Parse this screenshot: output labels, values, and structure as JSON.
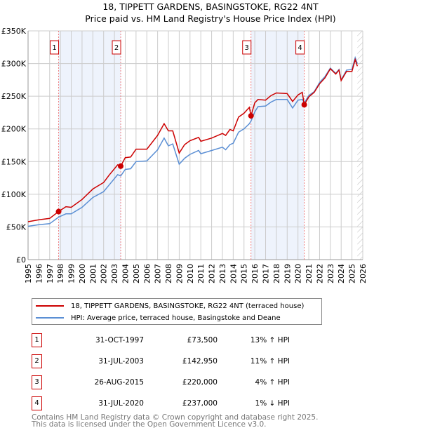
{
  "title_line1": "18, TIPPETT GARDENS, BASINGSTOKE, RG22 4NT",
  "title_line2": "Price paid vs. HM Land Registry's House Price Index (HPI)",
  "legend": {
    "property": "18, TIPPETT GARDENS, BASINGSTOKE, RG22 4NT (terraced house)",
    "hpi": "HPI: Average price, terraced house, Basingstoke and Deane"
  },
  "colors": {
    "property": "#cc0000",
    "hpi": "#5b8fd4",
    "shade": "#eef3fc",
    "grid": "#cccccc"
  },
  "transactions": [
    {
      "num": "1",
      "date": "31-OCT-1997",
      "price": "£73,500",
      "hpi": "13% ↑ HPI"
    },
    {
      "num": "2",
      "date": "31-JUL-2003",
      "price": "£142,950",
      "hpi": "11% ↑ HPI"
    },
    {
      "num": "3",
      "date": "26-AUG-2015",
      "price": "£220,000",
      "hpi": "4% ↑ HPI"
    },
    {
      "num": "4",
      "date": "31-JUL-2020",
      "price": "£237,000",
      "hpi": "1% ↓ HPI"
    }
  ],
  "footer": {
    "line1": "Contains HM Land Registry data © Crown copyright and database right 2025.",
    "line2": "This data is licensed under the Open Government Licence v3.0."
  },
  "chart_data": {
    "type": "line",
    "title": "18, TIPPETT GARDENS, BASINGSTOKE, RG22 4NT — Price paid vs. HM Land Registry's House Price Index (HPI)",
    "xlim": [
      1995,
      2026
    ],
    "ylim": [
      0,
      350000
    ],
    "x_ticks": [
      "1995",
      "1996",
      "1997",
      "1998",
      "1999",
      "2000",
      "2001",
      "2002",
      "2003",
      "2004",
      "2005",
      "2006",
      "2007",
      "2008",
      "2009",
      "2010",
      "2011",
      "2012",
      "2013",
      "2014",
      "2015",
      "2016",
      "2017",
      "2018",
      "2019",
      "2020",
      "2021",
      "2022",
      "2023",
      "2024",
      "2025",
      "2026"
    ],
    "y_ticks": [
      {
        "v": 0,
        "label": "£0"
      },
      {
        "v": 50000,
        "label": "£50K"
      },
      {
        "v": 100000,
        "label": "£100K"
      },
      {
        "v": 150000,
        "label": "£150K"
      },
      {
        "v": 200000,
        "label": "£200K"
      },
      {
        "v": 250000,
        "label": "£250K"
      },
      {
        "v": 300000,
        "label": "£300K"
      },
      {
        "v": 350000,
        "label": "£350K"
      }
    ],
    "grid": true,
    "shaded_ranges": [
      [
        1997.83,
        2003.58
      ],
      [
        2015.65,
        2020.58
      ]
    ],
    "future_hatch_from": 2025.5,
    "sales": [
      {
        "label": "1",
        "x": 1997.83,
        "y": 73500
      },
      {
        "label": "2",
        "x": 2003.58,
        "y": 142950
      },
      {
        "label": "3",
        "x": 2015.65,
        "y": 220000
      },
      {
        "label": "4",
        "x": 2020.58,
        "y": 237000
      }
    ],
    "series": [
      {
        "name": "property",
        "x": [
          1995,
          1996,
          1997,
          1997.83,
          1998.5,
          1999,
          2000,
          2001,
          2002,
          2002.5,
          2003.3,
          2003.58,
          2004,
          2004.5,
          2005,
          2006,
          2007,
          2007.6,
          2008,
          2008.4,
          2009,
          2009.5,
          2010,
          2010.8,
          2011,
          2012,
          2013,
          2013.3,
          2013.7,
          2014,
          2014.5,
          2015,
          2015.5,
          2015.65,
          2016,
          2016.3,
          2017,
          2017.5,
          2018,
          2019,
          2019.5,
          2020,
          2020.4,
          2020.58,
          2021,
          2021.5,
          2022,
          2022.5,
          2023,
          2023.5,
          2023.8,
          2024,
          2024.5,
          2025,
          2025.3,
          2025.5
        ],
        "y": [
          58000,
          61000,
          63000,
          73500,
          81000,
          80000,
          92000,
          108000,
          118000,
          129000,
          145000,
          142950,
          156000,
          157000,
          169000,
          169000,
          190000,
          208000,
          197000,
          197000,
          163000,
          176000,
          182000,
          187000,
          181000,
          186000,
          193000,
          190000,
          199000,
          197000,
          218000,
          224000,
          233000,
          220000,
          240000,
          245000,
          244000,
          251000,
          255000,
          254000,
          242000,
          252000,
          256000,
          237000,
          249000,
          256000,
          269000,
          278000,
          292000,
          284000,
          290000,
          274000,
          288000,
          288000,
          306000,
          296000
        ]
      },
      {
        "name": "hpi",
        "x": [
          1995,
          1996,
          1997,
          1997.83,
          1998.5,
          1999,
          2000,
          2001,
          2002,
          2002.5,
          2003.3,
          2003.58,
          2004,
          2004.5,
          2005,
          2006,
          2007,
          2007.6,
          2008,
          2008.4,
          2009,
          2009.5,
          2010,
          2010.8,
          2011,
          2012,
          2013,
          2013.3,
          2013.7,
          2014,
          2014.5,
          2015,
          2015.5,
          2015.65,
          2016,
          2016.3,
          2017,
          2017.5,
          2018,
          2019,
          2019.5,
          2020,
          2020.4,
          2020.58,
          2021,
          2021.5,
          2022,
          2022.5,
          2023,
          2023.5,
          2023.8,
          2024,
          2024.5,
          2025,
          2025.3,
          2025.5
        ],
        "y": [
          51000,
          53500,
          55000,
          65000,
          70000,
          70000,
          80000,
          95000,
          104000,
          114000,
          130000,
          128000,
          138000,
          139000,
          150000,
          151000,
          168000,
          186000,
          174000,
          177000,
          146000,
          155000,
          161000,
          167000,
          162000,
          167000,
          172000,
          168000,
          176000,
          178000,
          195000,
          200000,
          208000,
          212000,
          226000,
          234000,
          235000,
          241000,
          245000,
          245000,
          232000,
          244000,
          245000,
          240000,
          251000,
          257000,
          271000,
          280000,
          293000,
          285000,
          291000,
          275000,
          290000,
          291000,
          309000,
          300000
        ]
      }
    ]
  }
}
